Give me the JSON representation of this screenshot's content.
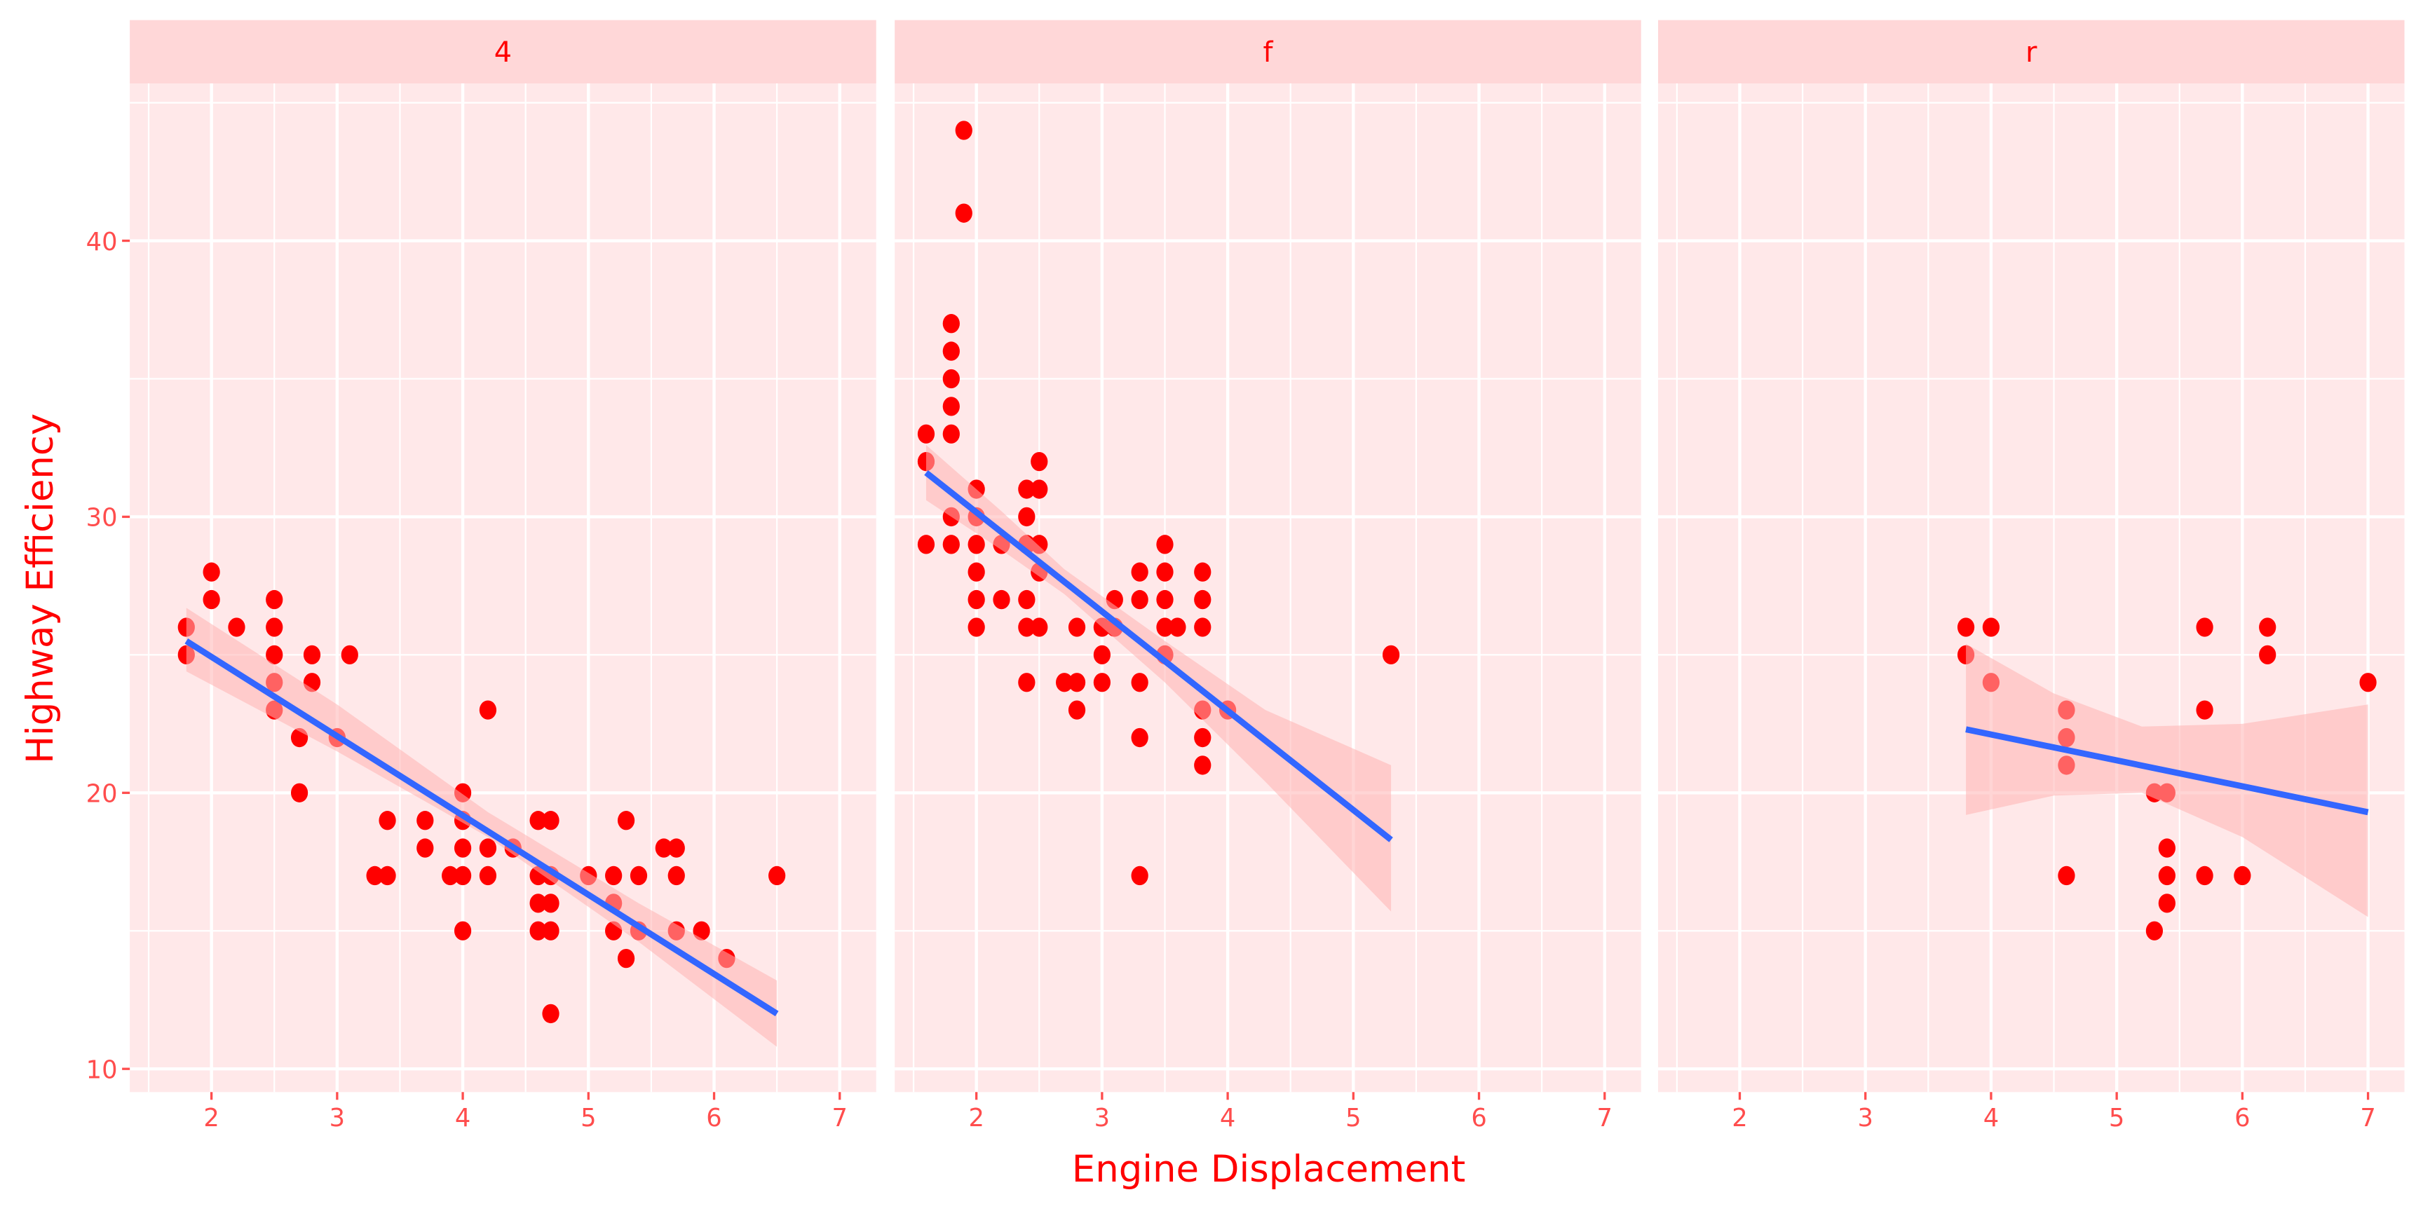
{
  "chart_data": {
    "type": "scatter",
    "facet_by": "drv",
    "xlabel": "Engine Displacement",
    "ylabel": "Highway Efficiency",
    "xlim": [
      1.35,
      7.29
    ],
    "ylim": [
      9.16,
      45.7
    ],
    "x_ticks": [
      2,
      3,
      4,
      5,
      6,
      7
    ],
    "y_ticks": [
      10,
      20,
      30,
      40
    ],
    "grid": true,
    "colors": {
      "panel_bg": "#FFE8E9",
      "strip_bg": "#FFD7D8",
      "point": "#FF0000",
      "line": "#3366FF",
      "ribbon": "#FFB3B3",
      "axis_text": "#FF4D4D",
      "title": "#FF0000",
      "grid": "#FFFFFF"
    },
    "panels": [
      {
        "label": "4",
        "points": [
          [
            1.8,
            26
          ],
          [
            1.8,
            25
          ],
          [
            2,
            28
          ],
          [
            2,
            27
          ],
          [
            2.2,
            26
          ],
          [
            2.5,
            27
          ],
          [
            2.5,
            26
          ],
          [
            2.5,
            25
          ],
          [
            2.5,
            24
          ],
          [
            2.5,
            23
          ],
          [
            2.7,
            22
          ],
          [
            2.7,
            20
          ],
          [
            2.8,
            25
          ],
          [
            2.8,
            24
          ],
          [
            3.0,
            22
          ],
          [
            3.1,
            25
          ],
          [
            3.3,
            17
          ],
          [
            3.4,
            19
          ],
          [
            3.4,
            17
          ],
          [
            3.7,
            19
          ],
          [
            3.7,
            18
          ],
          [
            3.9,
            17
          ],
          [
            4,
            20
          ],
          [
            4,
            19
          ],
          [
            4,
            18
          ],
          [
            4,
            17
          ],
          [
            4,
            15
          ],
          [
            4.2,
            23
          ],
          [
            4.2,
            18
          ],
          [
            4.2,
            17
          ],
          [
            4.4,
            18
          ],
          [
            4.6,
            19
          ],
          [
            4.6,
            17
          ],
          [
            4.6,
            16
          ],
          [
            4.6,
            15
          ],
          [
            4.7,
            19
          ],
          [
            4.7,
            17
          ],
          [
            4.7,
            16
          ],
          [
            4.7,
            15
          ],
          [
            4.7,
            12
          ],
          [
            5,
            17
          ],
          [
            5.2,
            17
          ],
          [
            5.2,
            16
          ],
          [
            5.2,
            15
          ],
          [
            5.3,
            19
          ],
          [
            5.3,
            14
          ],
          [
            5.4,
            17
          ],
          [
            5.4,
            15
          ],
          [
            5.6,
            18
          ],
          [
            5.7,
            18
          ],
          [
            5.7,
            17
          ],
          [
            5.7,
            15
          ],
          [
            5.9,
            15
          ],
          [
            6.1,
            14
          ],
          [
            6.5,
            17
          ]
        ],
        "fit": {
          "x": [
            1.8,
            6.5
          ],
          "y": [
            25.5,
            12.0
          ]
        },
        "ribbon": {
          "x": [
            1.8,
            3.0,
            4.2,
            5.4,
            6.5
          ],
          "lower": [
            24.4,
            21.5,
            18.4,
            14.6,
            10.8
          ],
          "upper": [
            26.7,
            23.2,
            19.3,
            16.0,
            13.2
          ]
        }
      },
      {
        "label": "f",
        "points": [
          [
            1.6,
            33
          ],
          [
            1.6,
            32
          ],
          [
            1.6,
            29
          ],
          [
            1.8,
            37
          ],
          [
            1.8,
            36
          ],
          [
            1.8,
            35
          ],
          [
            1.8,
            34
          ],
          [
            1.8,
            33
          ],
          [
            1.8,
            30
          ],
          [
            1.8,
            29
          ],
          [
            1.9,
            44
          ],
          [
            1.9,
            41
          ],
          [
            2,
            31
          ],
          [
            2,
            30
          ],
          [
            2,
            29
          ],
          [
            2,
            28
          ],
          [
            2,
            27
          ],
          [
            2,
            26
          ],
          [
            2.2,
            29
          ],
          [
            2.2,
            27
          ],
          [
            2.4,
            31
          ],
          [
            2.4,
            30
          ],
          [
            2.4,
            29
          ],
          [
            2.4,
            27
          ],
          [
            2.4,
            26
          ],
          [
            2.4,
            24
          ],
          [
            2.5,
            32
          ],
          [
            2.5,
            31
          ],
          [
            2.5,
            29
          ],
          [
            2.5,
            28
          ],
          [
            2.5,
            26
          ],
          [
            2.7,
            24
          ],
          [
            2.8,
            26
          ],
          [
            2.8,
            24
          ],
          [
            2.8,
            23
          ],
          [
            3,
            26
          ],
          [
            3,
            25
          ],
          [
            3,
            24
          ],
          [
            3.1,
            27
          ],
          [
            3.1,
            26
          ],
          [
            3.3,
            28
          ],
          [
            3.3,
            27
          ],
          [
            3.3,
            24
          ],
          [
            3.3,
            22
          ],
          [
            3.3,
            17
          ],
          [
            3.5,
            29
          ],
          [
            3.5,
            28
          ],
          [
            3.5,
            27
          ],
          [
            3.5,
            26
          ],
          [
            3.5,
            25
          ],
          [
            3.6,
            26
          ],
          [
            3.8,
            28
          ],
          [
            3.8,
            27
          ],
          [
            3.8,
            26
          ],
          [
            3.8,
            23
          ],
          [
            3.8,
            22
          ],
          [
            3.8,
            21
          ],
          [
            4,
            23
          ],
          [
            5.3,
            25
          ]
        ],
        "fit": {
          "x": [
            1.6,
            5.3
          ],
          "y": [
            31.6,
            18.3
          ]
        },
        "ribbon": {
          "x": [
            1.6,
            2.2,
            2.7,
            3.5,
            4.3,
            5.3
          ],
          "lower": [
            30.6,
            28.8,
            27.2,
            24.0,
            20.4,
            15.7
          ],
          "upper": [
            32.6,
            30.2,
            28.1,
            25.5,
            23.0,
            21.0
          ]
        }
      },
      {
        "label": "r",
        "points": [
          [
            3.8,
            26
          ],
          [
            3.8,
            25
          ],
          [
            4,
            26
          ],
          [
            4,
            24
          ],
          [
            4.6,
            23
          ],
          [
            4.6,
            22
          ],
          [
            4.6,
            21
          ],
          [
            4.6,
            17
          ],
          [
            5.3,
            20
          ],
          [
            5.3,
            15
          ],
          [
            5.4,
            20
          ],
          [
            5.4,
            18
          ],
          [
            5.4,
            17
          ],
          [
            5.4,
            16
          ],
          [
            5.7,
            26
          ],
          [
            5.7,
            23
          ],
          [
            5.7,
            17
          ],
          [
            6,
            17
          ],
          [
            6.2,
            26
          ],
          [
            6.2,
            25
          ],
          [
            7,
            24
          ]
        ],
        "fit": {
          "x": [
            3.8,
            7.0
          ],
          "y": [
            22.3,
            19.3
          ]
        },
        "ribbon": {
          "x": [
            3.8,
            4.5,
            5.2,
            6.0,
            7.0
          ],
          "lower": [
            19.2,
            19.9,
            20.0,
            18.4,
            15.5
          ],
          "upper": [
            25.4,
            23.6,
            22.4,
            22.5,
            23.2
          ]
        }
      }
    ]
  }
}
